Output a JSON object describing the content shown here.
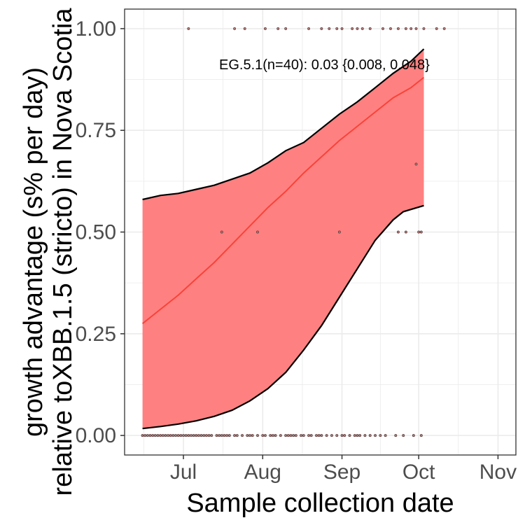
{
  "chart_data": {
    "type": "line",
    "xlabel": "Sample collection date",
    "ylabel_lines": [
      "growth advantage (s% per day)",
      "relative toXBB.1.5 (stricto) in Nova Scotia"
    ],
    "x_ticks": [
      "2023-07-01",
      "2023-08-01",
      "2023-09-01",
      "2023-10-01",
      "2023-11-01"
    ],
    "x_tick_labels": [
      "Jul",
      "Aug",
      "Sep",
      "Oct",
      "Nov"
    ],
    "xlim": [
      "2023-06-08",
      "2023-11-08"
    ],
    "y_ticks": [
      0,
      0.25,
      0.5,
      0.75,
      1.0
    ],
    "y_tick_labels": [
      "0.00",
      "0.25",
      "0.50",
      "0.75",
      "1.00"
    ],
    "ylim": [
      -0.048,
      1.048
    ],
    "grid": true,
    "annotation": "EG.5.1(n=40): 0.03 {0.008, 0.048}",
    "colors": {
      "ribbon": "#ff8080",
      "fit_line": "#f8433a",
      "ci_border": "#000000",
      "points": "#5a3a3a",
      "grid": "#ebebeb",
      "panel_border": "#333333"
    },
    "series": [
      {
        "fit": [
          [
            "2023-06-15",
            0.275
          ],
          [
            "2023-06-22",
            0.31
          ],
          [
            "2023-06-29",
            0.345
          ],
          [
            "2023-07-06",
            0.385
          ],
          [
            "2023-07-13",
            0.425
          ],
          [
            "2023-07-20",
            0.47
          ],
          [
            "2023-07-27",
            0.515
          ],
          [
            "2023-08-03",
            0.56
          ],
          [
            "2023-08-10",
            0.6
          ],
          [
            "2023-08-17",
            0.645
          ],
          [
            "2023-08-24",
            0.685
          ],
          [
            "2023-08-31",
            0.725
          ],
          [
            "2023-09-07",
            0.76
          ],
          [
            "2023-09-14",
            0.795
          ],
          [
            "2023-09-21",
            0.83
          ],
          [
            "2023-09-28",
            0.855
          ],
          [
            "2023-10-03",
            0.88
          ]
        ],
        "upper": [
          [
            "2023-06-15",
            0.58
          ],
          [
            "2023-06-22",
            0.59
          ],
          [
            "2023-06-29",
            0.595
          ],
          [
            "2023-07-06",
            0.605
          ],
          [
            "2023-07-13",
            0.615
          ],
          [
            "2023-07-20",
            0.63
          ],
          [
            "2023-07-27",
            0.645
          ],
          [
            "2023-08-03",
            0.67
          ],
          [
            "2023-08-10",
            0.7
          ],
          [
            "2023-08-17",
            0.72
          ],
          [
            "2023-08-24",
            0.755
          ],
          [
            "2023-08-31",
            0.79
          ],
          [
            "2023-09-07",
            0.82
          ],
          [
            "2023-09-14",
            0.855
          ],
          [
            "2023-09-21",
            0.89
          ],
          [
            "2023-09-28",
            0.92
          ],
          [
            "2023-10-03",
            0.95
          ]
        ],
        "lower": [
          [
            "2023-06-15",
            0.017
          ],
          [
            "2023-06-22",
            0.022
          ],
          [
            "2023-06-29",
            0.028
          ],
          [
            "2023-07-06",
            0.036
          ],
          [
            "2023-07-13",
            0.047
          ],
          [
            "2023-07-20",
            0.062
          ],
          [
            "2023-07-27",
            0.085
          ],
          [
            "2023-08-03",
            0.115
          ],
          [
            "2023-08-10",
            0.155
          ],
          [
            "2023-08-17",
            0.21
          ],
          [
            "2023-08-24",
            0.27
          ],
          [
            "2023-08-31",
            0.34
          ],
          [
            "2023-09-07",
            0.41
          ],
          [
            "2023-09-14",
            0.48
          ],
          [
            "2023-09-21",
            0.53
          ],
          [
            "2023-09-25",
            0.55
          ],
          [
            "2023-10-03",
            0.565
          ]
        ]
      }
    ],
    "points": [
      [
        "2023-07-03",
        1.0
      ],
      [
        "2023-07-21",
        1.0
      ],
      [
        "2023-07-25",
        1.0
      ],
      [
        "2023-08-02",
        1.0
      ],
      [
        "2023-08-07",
        1.0
      ],
      [
        "2023-08-10",
        1.0
      ],
      [
        "2023-08-19",
        1.0
      ],
      [
        "2023-08-24",
        1.0
      ],
      [
        "2023-08-27",
        1.0
      ],
      [
        "2023-08-30",
        1.0
      ],
      [
        "2023-09-01",
        1.0
      ],
      [
        "2023-09-05",
        1.0
      ],
      [
        "2023-09-07",
        1.0
      ],
      [
        "2023-09-09",
        1.0
      ],
      [
        "2023-09-12",
        1.0
      ],
      [
        "2023-09-17",
        1.0
      ],
      [
        "2023-09-20",
        1.0
      ],
      [
        "2023-09-23",
        1.0
      ],
      [
        "2023-09-26",
        1.0
      ],
      [
        "2023-09-28",
        1.0
      ],
      [
        "2023-09-30",
        1.0
      ],
      [
        "2023-10-03",
        1.0
      ],
      [
        "2023-10-08",
        1.0
      ],
      [
        "2023-10-11",
        1.0
      ],
      [
        "2023-09-30",
        0.667
      ],
      [
        "2023-07-16",
        0.5
      ],
      [
        "2023-07-30",
        0.5
      ],
      [
        "2023-08-31",
        0.5
      ],
      [
        "2023-09-23",
        0.5
      ],
      [
        "2023-09-26",
        0.5
      ],
      [
        "2023-10-01",
        0.5
      ],
      [
        "2023-10-02",
        0.5
      ],
      [
        "2023-06-15",
        0.0
      ],
      [
        "2023-06-16",
        0.0
      ],
      [
        "2023-06-17",
        0.0
      ],
      [
        "2023-06-18",
        0.0
      ],
      [
        "2023-06-19",
        0.0
      ],
      [
        "2023-06-20",
        0.0
      ],
      [
        "2023-06-21",
        0.0
      ],
      [
        "2023-06-22",
        0.0
      ],
      [
        "2023-06-23",
        0.0
      ],
      [
        "2023-06-24",
        0.0
      ],
      [
        "2023-06-25",
        0.0
      ],
      [
        "2023-06-26",
        0.0
      ],
      [
        "2023-06-27",
        0.0
      ],
      [
        "2023-06-28",
        0.0
      ],
      [
        "2023-06-29",
        0.0
      ],
      [
        "2023-06-30",
        0.0
      ],
      [
        "2023-07-01",
        0.0
      ],
      [
        "2023-07-02",
        0.0
      ],
      [
        "2023-07-03",
        0.0
      ],
      [
        "2023-07-04",
        0.0
      ],
      [
        "2023-07-05",
        0.0
      ],
      [
        "2023-07-06",
        0.0
      ],
      [
        "2023-07-07",
        0.0
      ],
      [
        "2023-07-08",
        0.0
      ],
      [
        "2023-07-09",
        0.0
      ],
      [
        "2023-07-10",
        0.0
      ],
      [
        "2023-07-11",
        0.0
      ],
      [
        "2023-07-12",
        0.0
      ],
      [
        "2023-07-14",
        0.0
      ],
      [
        "2023-07-15",
        0.0
      ],
      [
        "2023-07-16",
        0.0
      ],
      [
        "2023-07-17",
        0.0
      ],
      [
        "2023-07-18",
        0.0
      ],
      [
        "2023-07-19",
        0.0
      ],
      [
        "2023-07-21",
        0.0
      ],
      [
        "2023-07-22",
        0.0
      ],
      [
        "2023-07-24",
        0.0
      ],
      [
        "2023-07-26",
        0.0
      ],
      [
        "2023-07-27",
        0.0
      ],
      [
        "2023-07-28",
        0.0
      ],
      [
        "2023-07-30",
        0.0
      ],
      [
        "2023-08-01",
        0.0
      ],
      [
        "2023-08-02",
        0.0
      ],
      [
        "2023-08-04",
        0.0
      ],
      [
        "2023-08-05",
        0.0
      ],
      [
        "2023-08-06",
        0.0
      ],
      [
        "2023-08-08",
        0.0
      ],
      [
        "2023-08-10",
        0.0
      ],
      [
        "2023-08-11",
        0.0
      ],
      [
        "2023-08-12",
        0.0
      ],
      [
        "2023-08-13",
        0.0
      ],
      [
        "2023-08-14",
        0.0
      ],
      [
        "2023-08-16",
        0.0
      ],
      [
        "2023-08-17",
        0.0
      ],
      [
        "2023-08-19",
        0.0
      ],
      [
        "2023-08-20",
        0.0
      ],
      [
        "2023-08-22",
        0.0
      ],
      [
        "2023-08-23",
        0.0
      ],
      [
        "2023-08-24",
        0.0
      ],
      [
        "2023-08-26",
        0.0
      ],
      [
        "2023-08-28",
        0.0
      ],
      [
        "2023-08-30",
        0.0
      ],
      [
        "2023-09-01",
        0.0
      ],
      [
        "2023-09-02",
        0.0
      ],
      [
        "2023-09-04",
        0.0
      ],
      [
        "2023-09-06",
        0.0
      ],
      [
        "2023-09-07",
        0.0
      ],
      [
        "2023-09-08",
        0.0
      ],
      [
        "2023-09-10",
        0.0
      ],
      [
        "2023-09-12",
        0.0
      ],
      [
        "2023-09-14",
        0.0
      ],
      [
        "2023-09-16",
        0.0
      ],
      [
        "2023-09-18",
        0.0
      ],
      [
        "2023-09-22",
        0.0
      ],
      [
        "2023-09-25",
        0.0
      ],
      [
        "2023-09-29",
        0.0
      ],
      [
        "2023-10-02",
        0.0
      ]
    ]
  }
}
